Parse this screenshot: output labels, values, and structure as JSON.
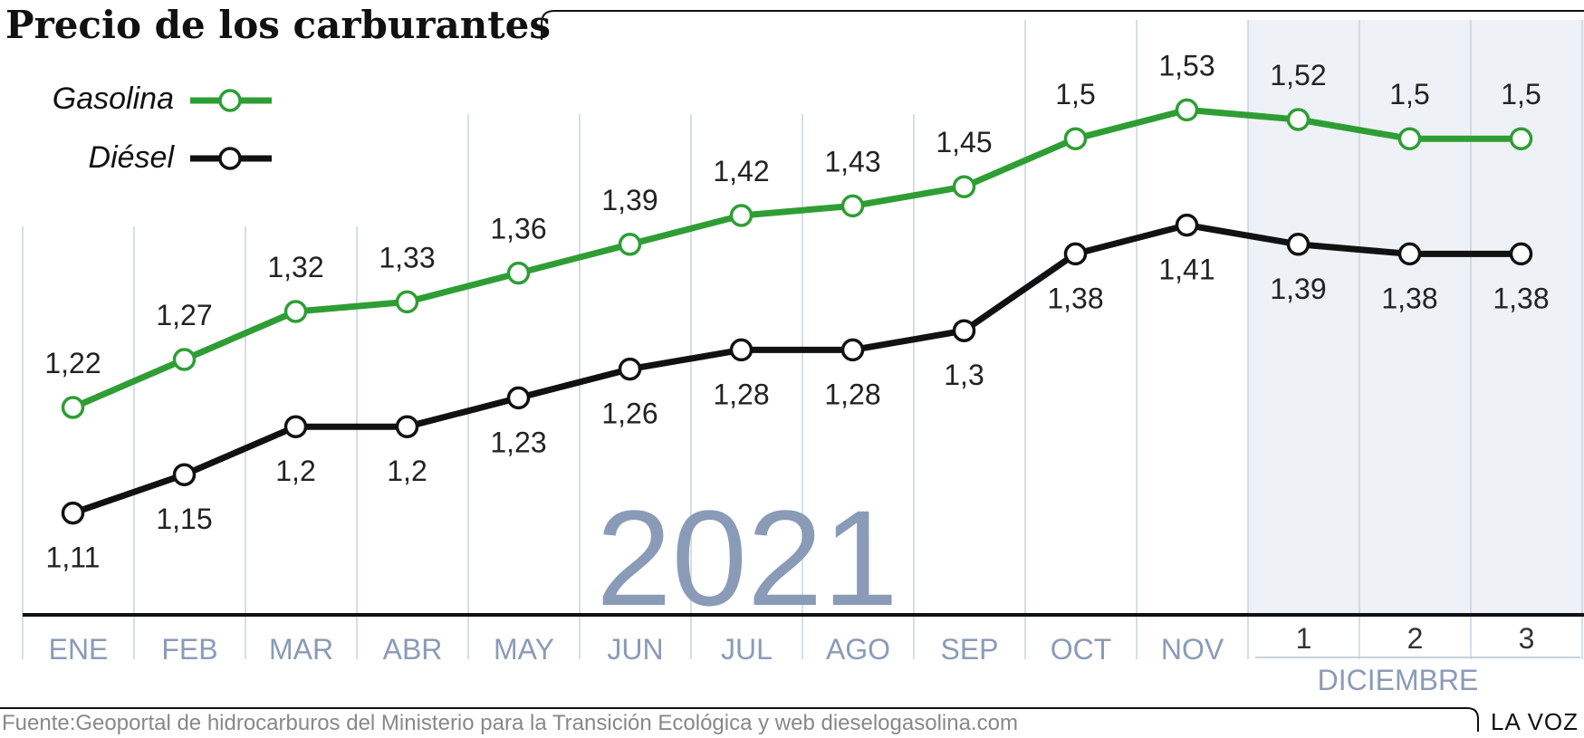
{
  "title": "Precio de los carburantes",
  "year_label": "2021",
  "footer": {
    "source": "Fuente:Geoportal de hidrocarburos del Ministerio para la Transición Ecológica y web dieselogasolina.com",
    "brand": "LA VOZ"
  },
  "colors": {
    "gasolina": "#2e9e34",
    "diesel": "#111111",
    "highlight_band": "#eef1f6",
    "gridline": "#c8d3dc",
    "axis_label": "#8a9bb8"
  },
  "chart_data": {
    "type": "line",
    "categories": [
      "ENE",
      "FEB",
      "MAR",
      "ABR",
      "MAY",
      "JUN",
      "JUL",
      "AGO",
      "SEP",
      "OCT",
      "NOV",
      "1",
      "2",
      "3"
    ],
    "group_label": "DICIEMBRE",
    "grouped_categories": [
      "1",
      "2",
      "3"
    ],
    "legend_placement": "top-left",
    "grid": true,
    "series": [
      {
        "name": "Gasolina",
        "values": [
          1.22,
          1.27,
          1.32,
          1.33,
          1.36,
          1.39,
          1.42,
          1.43,
          1.45,
          1.5,
          1.53,
          1.52,
          1.5,
          1.5
        ],
        "labels": [
          "1,22",
          "1,27",
          "1,32",
          "1,33",
          "1,36",
          "1,39",
          "1,42",
          "1,43",
          "1,45",
          "1,5",
          "1,53",
          "1,52",
          "1,5",
          "1,5"
        ]
      },
      {
        "name": "Diésel",
        "values": [
          1.11,
          1.15,
          1.2,
          1.2,
          1.23,
          1.26,
          1.28,
          1.28,
          1.3,
          1.38,
          1.41,
          1.39,
          1.38,
          1.38
        ],
        "labels": [
          "1,11",
          "1,15",
          "1,2",
          "1,2",
          "1,23",
          "1,26",
          "1,28",
          "1,28",
          "1,3",
          "1,38",
          "1,41",
          "1,39",
          "1,38",
          "1,38"
        ]
      }
    ]
  }
}
